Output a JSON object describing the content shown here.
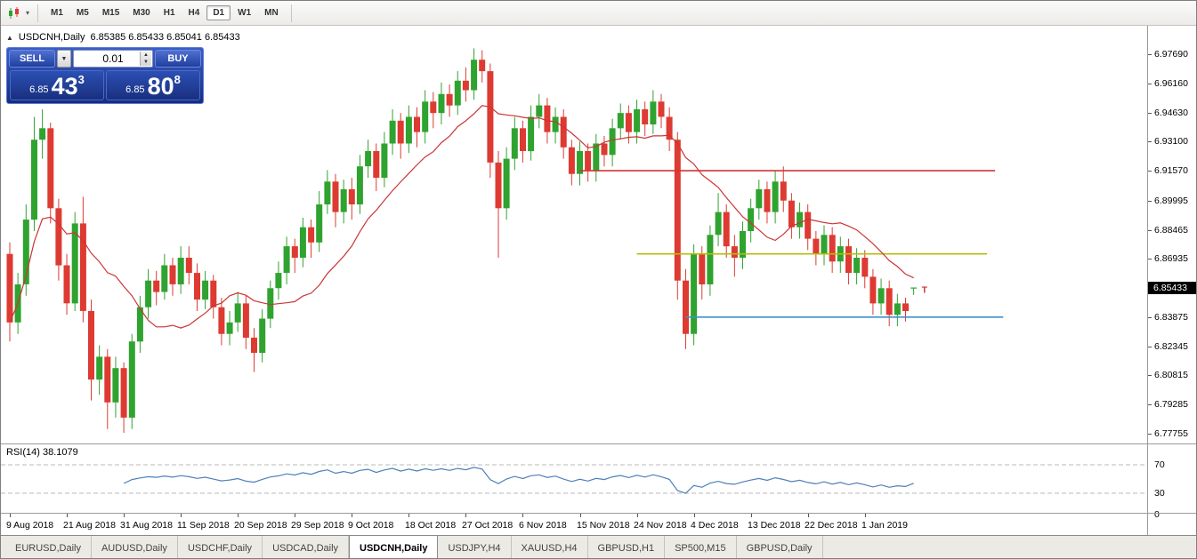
{
  "icons": {
    "dropdown_caret": "▾",
    "collapse": "▲",
    "spinner_up": "▲",
    "spinner_down": "▼",
    "combo_caret": "▼"
  },
  "toolbar": {
    "timeframes": [
      "M1",
      "M5",
      "M15",
      "M30",
      "H1",
      "H4",
      "D1",
      "W1",
      "MN"
    ],
    "active_timeframe": "D1"
  },
  "chart_header": {
    "symbol": "USDCNH,Daily",
    "ohlc": "6.85385 6.85433 6.85041 6.85433"
  },
  "trade_panel": {
    "sell_label": "SELL",
    "buy_label": "BUY",
    "volume_value": "0.01",
    "sell_price": {
      "main": "6.85",
      "pips": "43",
      "pipette": "3"
    },
    "buy_price": {
      "main": "6.85",
      "pips": "80",
      "pipette": "8"
    }
  },
  "price_axis": {
    "labels": [
      "6.97690",
      "6.96160",
      "6.94630",
      "6.93100",
      "6.91570",
      "6.89995",
      "6.88465",
      "6.86935",
      "6.83875",
      "6.82345",
      "6.80815",
      "6.79285",
      "6.77755"
    ],
    "current_price_label": "6.85433"
  },
  "rsi_panel": {
    "label": "RSI(14) 38.1079",
    "axis_labels": [
      "70",
      "30",
      "0"
    ]
  },
  "tabs": {
    "items": [
      "EURUSD,Daily",
      "AUDUSD,Daily",
      "USDCHF,Daily",
      "USDCAD,Daily",
      "USDCNH,Daily",
      "USDJPY,H4",
      "XAUUSD,H4",
      "GBPUSD,H1",
      "SP500,M15",
      "GBPUSD,Daily"
    ],
    "active_index": 4
  },
  "chart_data": {
    "type": "candlestick",
    "symbol": "USDCNH",
    "period": "Daily",
    "ohlc_display": {
      "open": "6.85385",
      "high": "6.85433",
      "low": "6.85041",
      "close": "6.85433"
    },
    "current_price": 6.85433,
    "x_labels": [
      "9 Aug 2018",
      "21 Aug 2018",
      "31 Aug 2018",
      "11 Sep 2018",
      "20 Sep 2018",
      "29 Sep 2018",
      "9 Oct 2018",
      "18 Oct 2018",
      "27 Oct 2018",
      "6 Nov 2018",
      "15 Nov 2018",
      "24 Nov 2018",
      "4 Dec 2018",
      "13 Dec 2018",
      "22 Dec 2018",
      "1 Jan 2019"
    ],
    "x_label_step": 7,
    "colors": {
      "up": "#2fa32f",
      "down": "#dd3a32"
    },
    "ma": {
      "type": "sma",
      "period": 13,
      "color": "#cc3434"
    },
    "rsi": {
      "period": 14,
      "value": 38.1079,
      "levels": [
        70,
        30
      ],
      "color": "#4d80ba"
    },
    "hlines": [
      {
        "name": "resistance",
        "price": 6.9157,
        "color": "#cf3434",
        "from_index": 70,
        "to_index": 121
      },
      {
        "name": "pivot",
        "price": 6.872,
        "color": "#b5bc08",
        "from_index": 77,
        "to_index": 120
      },
      {
        "name": "support",
        "price": 6.8388,
        "color": "#3f90c8",
        "from_index": 83,
        "to_index": 122
      }
    ],
    "trade_marker": {
      "label": "T",
      "price": 6.8535,
      "color": "#d03030"
    },
    "candles": [
      [
        6.872,
        6.878,
        6.826,
        6.836
      ],
      [
        6.836,
        6.862,
        6.83,
        6.856
      ],
      [
        6.856,
        6.898,
        6.85,
        6.89
      ],
      [
        6.89,
        6.944,
        6.884,
        6.932
      ],
      [
        6.932,
        6.948,
        6.922,
        6.938
      ],
      [
        6.938,
        6.941,
        6.888,
        6.896
      ],
      [
        6.896,
        6.901,
        6.858,
        6.866
      ],
      [
        6.866,
        6.872,
        6.84,
        6.846
      ],
      [
        6.846,
        6.894,
        6.842,
        6.888
      ],
      [
        6.888,
        6.902,
        6.836,
        6.842
      ],
      [
        6.842,
        6.848,
        6.795,
        6.806
      ],
      [
        6.806,
        6.824,
        6.798,
        6.818
      ],
      [
        6.818,
        6.822,
        6.78,
        6.794
      ],
      [
        6.794,
        6.818,
        6.786,
        6.812
      ],
      [
        6.812,
        6.815,
        6.778,
        6.786
      ],
      [
        6.786,
        6.83,
        6.78,
        6.826
      ],
      [
        6.826,
        6.85,
        6.82,
        6.844
      ],
      [
        6.844,
        6.864,
        6.838,
        6.858
      ],
      [
        6.858,
        6.863,
        6.845,
        6.852
      ],
      [
        6.852,
        6.872,
        6.848,
        6.866
      ],
      [
        6.866,
        6.87,
        6.85,
        6.856
      ],
      [
        6.856,
        6.876,
        6.851,
        6.87
      ],
      [
        6.87,
        6.876,
        6.856,
        6.862
      ],
      [
        6.862,
        6.867,
        6.842,
        6.848
      ],
      [
        6.848,
        6.863,
        6.843,
        6.858
      ],
      [
        6.858,
        6.861,
        6.838,
        6.844
      ],
      [
        6.844,
        6.849,
        6.824,
        6.83
      ],
      [
        6.83,
        6.842,
        6.824,
        6.836
      ],
      [
        6.836,
        6.852,
        6.831,
        6.846
      ],
      [
        6.846,
        6.85,
        6.822,
        6.828
      ],
      [
        6.828,
        6.833,
        6.81,
        6.82
      ],
      [
        6.82,
        6.843,
        6.815,
        6.838
      ],
      [
        6.838,
        6.858,
        6.833,
        6.854
      ],
      [
        6.854,
        6.868,
        6.848,
        6.862
      ],
      [
        6.862,
        6.881,
        6.856,
        6.876
      ],
      [
        6.876,
        6.88,
        6.862,
        6.87
      ],
      [
        6.87,
        6.891,
        6.865,
        6.886
      ],
      [
        6.886,
        6.89,
        6.87,
        6.878
      ],
      [
        6.878,
        6.905,
        6.873,
        6.898
      ],
      [
        6.898,
        6.916,
        6.893,
        6.91
      ],
      [
        6.91,
        6.914,
        6.886,
        6.894
      ],
      [
        6.894,
        6.911,
        6.888,
        6.906
      ],
      [
        6.906,
        6.912,
        6.89,
        6.898
      ],
      [
        6.898,
        6.924,
        6.893,
        6.918
      ],
      [
        6.918,
        6.932,
        6.912,
        6.926
      ],
      [
        6.926,
        6.93,
        6.905,
        6.912
      ],
      [
        6.912,
        6.936,
        6.907,
        6.93
      ],
      [
        6.93,
        6.948,
        6.924,
        6.942
      ],
      [
        6.942,
        6.946,
        6.922,
        6.93
      ],
      [
        6.93,
        6.95,
        6.925,
        6.944
      ],
      [
        6.944,
        6.949,
        6.928,
        6.936
      ],
      [
        6.936,
        6.958,
        6.93,
        6.952
      ],
      [
        6.952,
        6.957,
        6.938,
        6.946
      ],
      [
        6.946,
        6.962,
        6.94,
        6.956
      ],
      [
        6.956,
        6.961,
        6.944,
        6.95
      ],
      [
        6.95,
        6.968,
        6.945,
        6.963
      ],
      [
        6.963,
        6.97,
        6.952,
        6.958
      ],
      [
        6.958,
        6.98,
        6.953,
        6.974
      ],
      [
        6.974,
        6.979,
        6.962,
        6.968
      ],
      [
        6.968,
        6.972,
        6.912,
        6.92
      ],
      [
        6.92,
        6.926,
        6.87,
        6.896
      ],
      [
        6.896,
        6.928,
        6.89,
        6.922
      ],
      [
        6.922,
        6.944,
        6.916,
        6.938
      ],
      [
        6.938,
        6.942,
        6.92,
        6.926
      ],
      [
        6.926,
        6.95,
        6.921,
        6.944
      ],
      [
        6.944,
        6.956,
        6.938,
        6.95
      ],
      [
        6.95,
        6.954,
        6.93,
        6.936
      ],
      [
        6.936,
        6.949,
        6.93,
        6.944
      ],
      [
        6.944,
        6.948,
        6.922,
        6.928
      ],
      [
        6.928,
        6.932,
        6.908,
        6.914
      ],
      [
        6.914,
        6.931,
        6.908,
        6.926
      ],
      [
        6.926,
        6.93,
        6.91,
        6.916
      ],
      [
        6.916,
        6.935,
        6.91,
        6.93
      ],
      [
        6.93,
        6.934,
        6.918,
        6.924
      ],
      [
        6.924,
        6.943,
        6.918,
        6.938
      ],
      [
        6.938,
        6.951,
        6.932,
        6.946
      ],
      [
        6.946,
        6.95,
        6.93,
        6.936
      ],
      [
        6.936,
        6.953,
        6.93,
        6.948
      ],
      [
        6.948,
        6.952,
        6.934,
        6.94
      ],
      [
        6.94,
        6.958,
        6.935,
        6.952
      ],
      [
        6.952,
        6.956,
        6.938,
        6.944
      ],
      [
        6.944,
        6.949,
        6.926,
        6.932
      ],
      [
        6.932,
        6.936,
        6.848,
        6.858
      ],
      [
        6.858,
        6.864,
        6.822,
        6.83
      ],
      [
        6.83,
        6.877,
        6.824,
        6.872
      ],
      [
        6.872,
        6.876,
        6.848,
        6.856
      ],
      [
        6.856,
        6.887,
        6.85,
        6.882
      ],
      [
        6.882,
        6.904,
        6.876,
        6.894
      ],
      [
        6.894,
        6.898,
        6.87,
        6.876
      ],
      [
        6.876,
        6.882,
        6.86,
        6.87
      ],
      [
        6.87,
        6.889,
        6.864,
        6.884
      ],
      [
        6.884,
        6.901,
        6.878,
        6.896
      ],
      [
        6.896,
        6.911,
        6.89,
        6.906
      ],
      [
        6.906,
        6.91,
        6.888,
        6.894
      ],
      [
        6.894,
        6.916,
        6.888,
        6.91
      ],
      [
        6.91,
        6.918,
        6.894,
        6.9
      ],
      [
        6.9,
        6.904,
        6.88,
        6.886
      ],
      [
        6.886,
        6.899,
        6.88,
        6.894
      ],
      [
        6.894,
        6.898,
        6.874,
        6.88
      ],
      [
        6.88,
        6.884,
        6.866,
        6.872
      ],
      [
        6.872,
        6.887,
        6.866,
        6.882
      ],
      [
        6.882,
        6.886,
        6.862,
        6.868
      ],
      [
        6.868,
        6.881,
        6.862,
        6.876
      ],
      [
        6.876,
        6.88,
        6.856,
        6.862
      ],
      [
        6.862,
        6.875,
        6.856,
        6.87
      ],
      [
        6.87,
        6.874,
        6.854,
        6.86
      ],
      [
        6.86,
        6.864,
        6.84,
        6.846
      ],
      [
        6.846,
        6.859,
        6.84,
        6.854
      ],
      [
        6.854,
        6.858,
        6.834,
        6.84
      ],
      [
        6.84,
        6.851,
        6.834,
        6.846
      ],
      [
        6.846,
        6.849,
        6.8365,
        6.842
      ],
      [
        6.85385,
        6.85433,
        6.85041,
        6.85433
      ]
    ]
  }
}
